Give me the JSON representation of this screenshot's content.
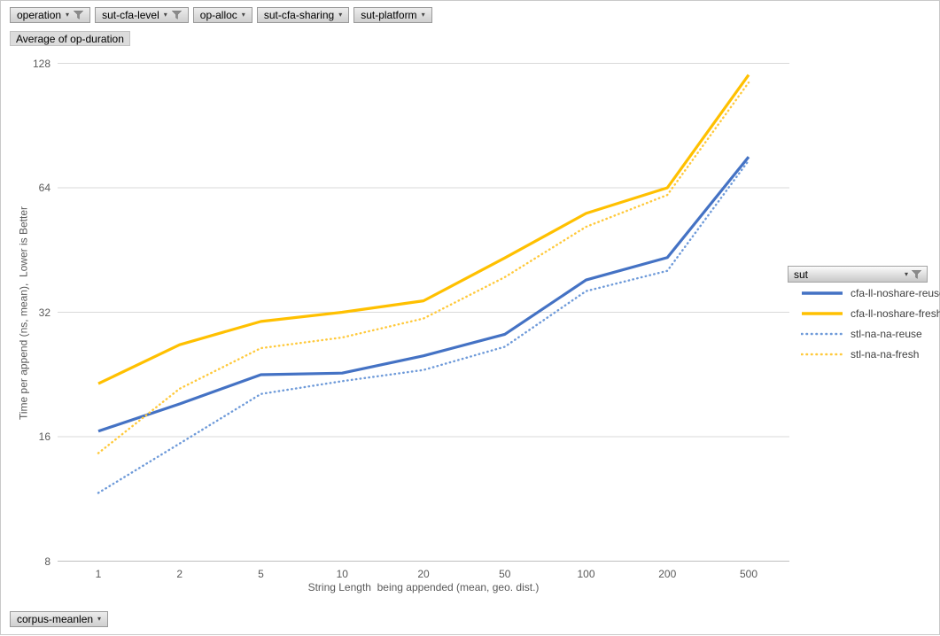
{
  "field_buttons": {
    "top": [
      {
        "label": "operation",
        "filtered": true
      },
      {
        "label": "sut-cfa-level",
        "filtered": true
      },
      {
        "label": "op-alloc",
        "filtered": false
      },
      {
        "label": "sut-cfa-sharing",
        "filtered": false
      },
      {
        "label": "sut-platform",
        "filtered": false
      }
    ],
    "value_field": "Average of op-duration",
    "axis_field": "corpus-meanlen",
    "legend_field": "sut"
  },
  "icons": {
    "funnel": "filter-funnel-icon",
    "caret": "dropdown-caret-icon"
  },
  "chart_data": {
    "type": "line",
    "title": "",
    "xlabel": "String Length  being appended (mean, geo. dist.)",
    "ylabel": "Time per append (ns, mean),  Lower is Better",
    "categories": [
      "1",
      "2",
      "5",
      "10",
      "20",
      "50",
      "100",
      "200",
      "500"
    ],
    "y_scale": "log2",
    "y_ticks": [
      "128",
      "64",
      "32",
      "16",
      "8"
    ],
    "ylim": [
      8,
      128
    ],
    "grid": true,
    "legend_position": "right",
    "series": [
      {
        "name": "cfa-ll-noshare-reuse",
        "style": "solid",
        "color": "#4472C4",
        "values": [
          16.5,
          19.2,
          22.6,
          22.8,
          25.1,
          28.3,
          38.3,
          43.4,
          76
        ]
      },
      {
        "name": "cfa-ll-noshare-fresh",
        "style": "solid",
        "color": "#FFC000",
        "values": [
          21.5,
          26.7,
          30.4,
          32,
          34.1,
          43.3,
          55.5,
          64,
          120
        ]
      },
      {
        "name": "stl-na-na-reuse",
        "style": "dotted",
        "color": "#6E9AD9",
        "values": [
          11.7,
          15.4,
          20.3,
          21.8,
          23.2,
          26.4,
          36,
          40.3,
          74.5
        ]
      },
      {
        "name": "stl-na-na-fresh",
        "style": "dotted",
        "color": "#FFC93B",
        "values": [
          14.6,
          20.9,
          26.2,
          27.8,
          30.9,
          38.9,
          51.5,
          61.5,
          115
        ]
      }
    ]
  }
}
